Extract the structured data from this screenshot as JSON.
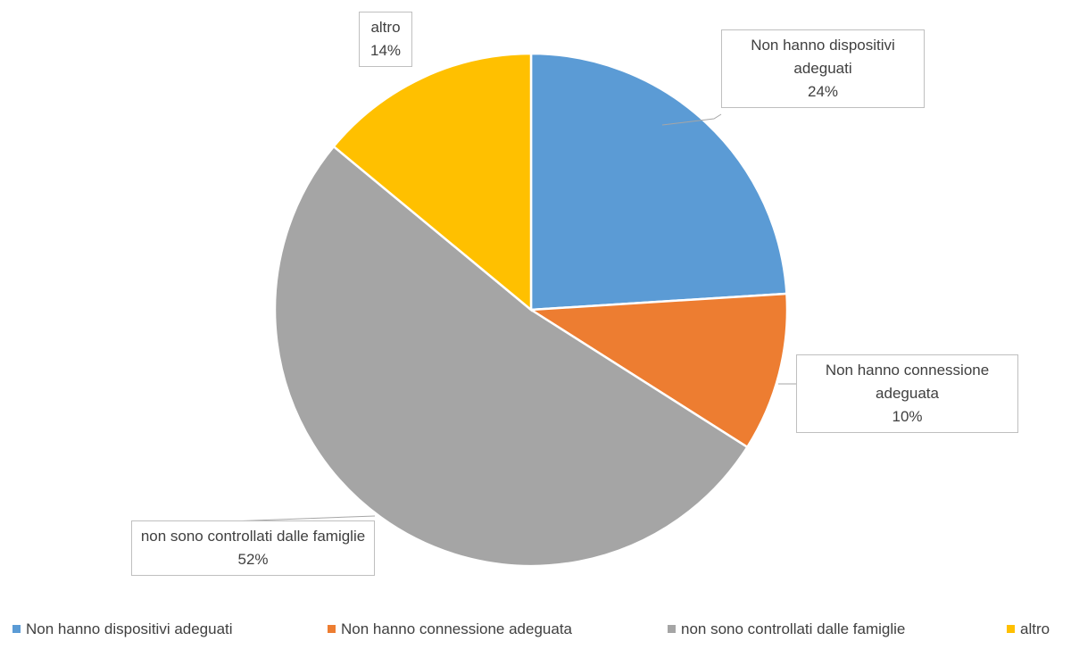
{
  "chart_data": {
    "type": "pie",
    "categories": [
      "Non hanno dispositivi adeguati",
      "Non hanno connessione adeguata",
      "non sono controllati dalle famiglie",
      "altro"
    ],
    "values": [
      24,
      10,
      52,
      14
    ],
    "value_labels": [
      "24%",
      "10%",
      "52%",
      "14%"
    ],
    "colors": [
      "#5b9bd5",
      "#ed7d31",
      "#a5a5a5",
      "#ffc000"
    ],
    "legend": "bottom"
  }
}
